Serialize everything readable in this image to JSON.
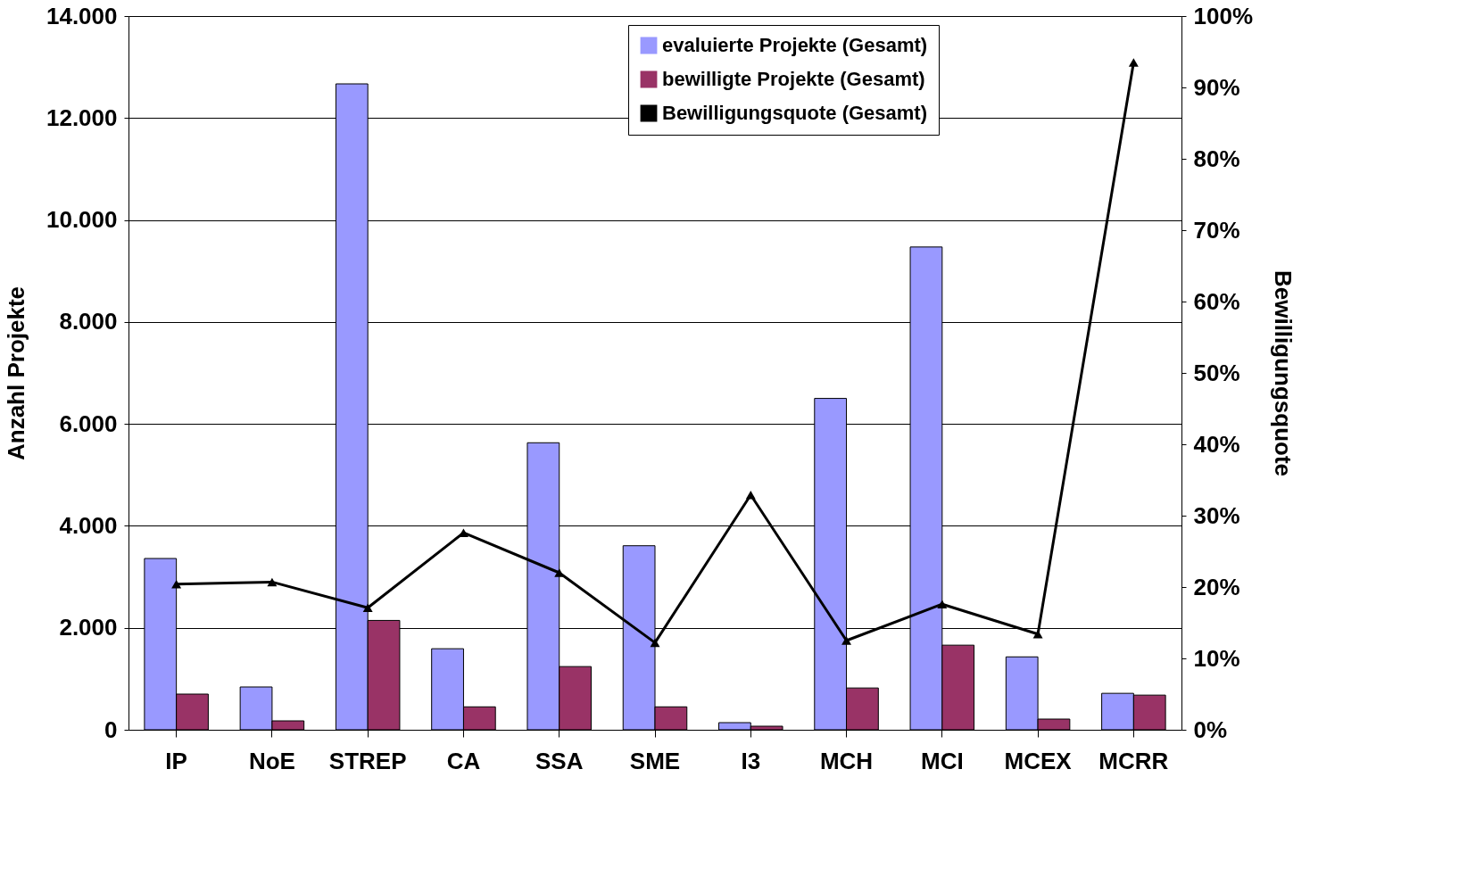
{
  "chart_data": {
    "type": "bar",
    "categories": [
      "IP",
      "NoE",
      "STREP",
      "CA",
      "SSA",
      "SME",
      "I3",
      "MCH",
      "MCI",
      "MCEX",
      "MCRR"
    ],
    "ylabel": "Anzahl Projekte",
    "y2label": "Bewilligungsquote",
    "ylim": [
      0,
      14000
    ],
    "yticks": [
      0,
      {
        "value": 2000,
        "label": "2.000"
      },
      {
        "value": 4000,
        "label": "4.000"
      },
      {
        "value": 6000,
        "label": "6.000"
      },
      {
        "value": 8000,
        "label": "8.000"
      },
      {
        "value": 10000,
        "label": "10.000"
      },
      {
        "value": 12000,
        "label": "12.000"
      },
      {
        "value": 14000,
        "label": "14.000"
      }
    ],
    "y2lim": [
      0,
      100
    ],
    "y2ticks": [
      {
        "value": 0,
        "label": "0%"
      },
      {
        "value": 10,
        "label": "10%"
      },
      {
        "value": 20,
        "label": "20%"
      },
      {
        "value": 30,
        "label": "30%"
      },
      {
        "value": 40,
        "label": "40%"
      },
      {
        "value": 50,
        "label": "50%"
      },
      {
        "value": 60,
        "label": "60%"
      },
      {
        "value": 70,
        "label": "70%"
      },
      {
        "value": 80,
        "label": "80%"
      },
      {
        "value": 90,
        "label": "90%"
      },
      {
        "value": 100,
        "label": "100%"
      }
    ],
    "grid": "y",
    "legend": "top right",
    "marker": "triangle",
    "series": [
      {
        "name": "evaluierte Projekte (Gesamt)",
        "color": "#9999ff",
        "values": [
          3360,
          840,
          12670,
          1590,
          5630,
          3610,
          140,
          6500,
          9470,
          1430,
          715
        ]
      },
      {
        "name": "bewilligte Projekte (Gesamt)",
        "color": "#993366",
        "values": [
          700,
          175,
          2145,
          450,
          1240,
          450,
          70,
          820,
          1660,
          210,
          680
        ]
      },
      {
        "name": "Bewilligungsquote (Gesamt)",
        "type": "line",
        "axis": "y2",
        "color": "#000000",
        "values": [
          20.4,
          20.7,
          17.1,
          27.6,
          22.0,
          12.2,
          32.9,
          12.5,
          17.6,
          13.4,
          93.5
        ]
      }
    ]
  }
}
